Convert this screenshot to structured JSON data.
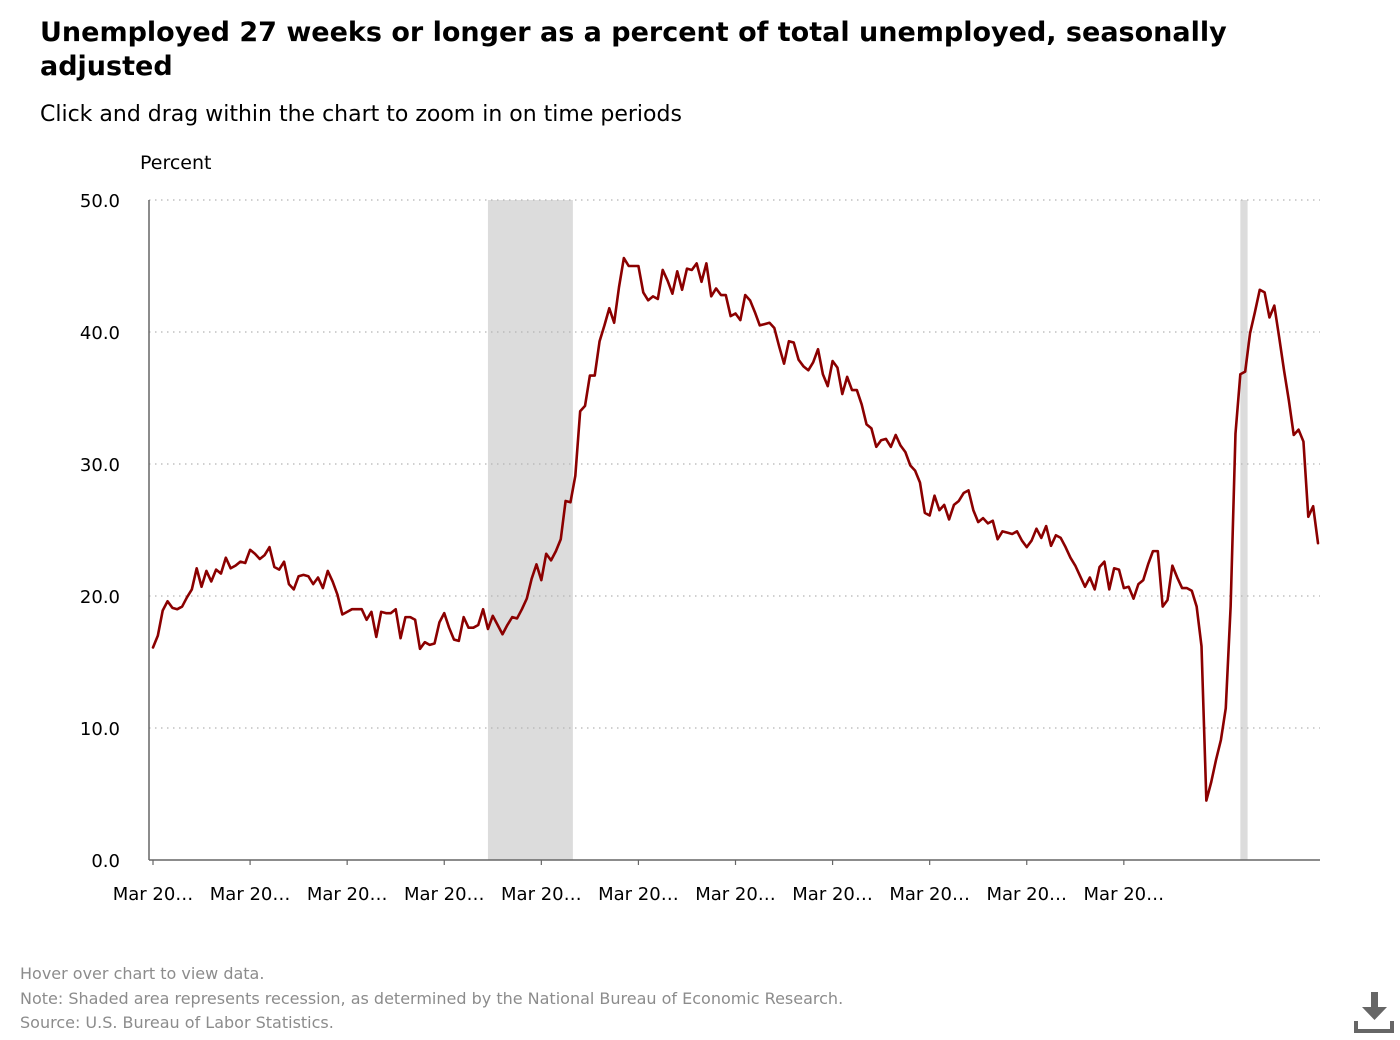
{
  "header": {
    "title": "Unemployed 27 weeks or longer as a percent of total unemployed, seasonally adjusted",
    "subtitle": "Click and drag within the chart to zoom in on time periods"
  },
  "footer": {
    "hover_hint": "Hover over chart to view data.",
    "note": "Note: Shaded area represents recession, as determined by the National Bureau of Economic Research.",
    "source": "Source: U.S. Bureau of Labor Statistics."
  },
  "icons": {
    "download": "download-icon"
  },
  "colors": {
    "series": "#8b0000",
    "recession": "#dcdcdc",
    "axis": "#666666",
    "grid": "#b4b4b4"
  },
  "chart_data": {
    "type": "line",
    "title": "Unemployed 27 weeks or longer as a percent of total unemployed, seasonally adjusted",
    "ylabel": "Percent",
    "ylim": [
      0,
      50
    ],
    "yticks": [
      "0.0",
      "10.0",
      "20.0",
      "30.0",
      "40.0",
      "50.0"
    ],
    "xticks": [
      "Mar 20…",
      "Mar 20…",
      "Mar 20…",
      "Mar 20…",
      "Mar 20…",
      "Mar 20…",
      "Mar 20…",
      "Mar 20…",
      "Mar 20…",
      "Mar 20…",
      "Mar 20…"
    ],
    "grid": "horizontal dotted",
    "recessions": [
      [
        69,
        86.5
      ],
      [
        224,
        225.5
      ]
    ],
    "series": [
      {
        "values": [
          16.1,
          17.0,
          18.9,
          19.6,
          19.1,
          19.0,
          19.2,
          19.9,
          20.5,
          22.1,
          20.7,
          21.9,
          21.1,
          22.0,
          21.7,
          22.9,
          22.1,
          22.3,
          22.6,
          22.5,
          23.5,
          23.2,
          22.8,
          23.1,
          23.7,
          22.2,
          22.0,
          22.6,
          20.9,
          20.5,
          21.5,
          21.6,
          21.5,
          20.9,
          21.4,
          20.6,
          21.9,
          21.1,
          20.1,
          18.6,
          18.8,
          19.0,
          19.0,
          19.0,
          18.2,
          18.8,
          16.9,
          18.8,
          18.7,
          18.7,
          19.0,
          16.8,
          18.4,
          18.4,
          18.2,
          16.0,
          16.5,
          16.3,
          16.4,
          18.0,
          18.7,
          17.6,
          16.7,
          16.6,
          18.4,
          17.6,
          17.6,
          17.8,
          19.0,
          17.5,
          18.5,
          17.8,
          17.1,
          17.8,
          18.4,
          18.3,
          19.0,
          19.8,
          21.3,
          22.4,
          21.2,
          23.2,
          22.7,
          23.4,
          24.3,
          27.2,
          27.1,
          29.1,
          34.0,
          34.4,
          36.7,
          36.7,
          39.3,
          40.5,
          41.8,
          40.7,
          43.4,
          45.6,
          45.0,
          45.0,
          45.0,
          43.0,
          42.4,
          42.7,
          42.5,
          44.7,
          43.9,
          42.9,
          44.6,
          43.2,
          44.8,
          44.7,
          45.2,
          43.8,
          45.2,
          42.7,
          43.3,
          42.8,
          42.8,
          41.2,
          41.4,
          40.9,
          42.8,
          42.4,
          41.5,
          40.5,
          40.6,
          40.7,
          40.3,
          38.9,
          37.6,
          39.3,
          39.2,
          37.9,
          37.4,
          37.1,
          37.7,
          38.7,
          36.8,
          35.9,
          37.8,
          37.3,
          35.3,
          36.6,
          35.6,
          35.6,
          34.5,
          33.0,
          32.7,
          31.3,
          31.8,
          31.9,
          31.3,
          32.2,
          31.4,
          30.9,
          29.9,
          29.5,
          28.6,
          26.3,
          26.1,
          27.6,
          26.5,
          26.9,
          25.8,
          26.9,
          27.2,
          27.8,
          28.0,
          26.5,
          25.6,
          25.9,
          25.5,
          25.7,
          24.3,
          24.9,
          24.8,
          24.7,
          24.9,
          24.2,
          23.7,
          24.2,
          25.1,
          24.4,
          25.3,
          23.8,
          24.6,
          24.4,
          23.7,
          22.9,
          22.3,
          21.5,
          20.7,
          21.4,
          20.5,
          22.2,
          22.6,
          20.5,
          22.1,
          22.0,
          20.6,
          20.7,
          19.8,
          20.9,
          21.2,
          22.4,
          23.4,
          23.4,
          19.2,
          19.7,
          22.3,
          21.4,
          20.6,
          20.6,
          20.4,
          19.2,
          16.2,
          4.5,
          5.9,
          7.6,
          9.1,
          11.5,
          19.2,
          32.3,
          36.8,
          37.0,
          39.9,
          41.5,
          43.2,
          43.0,
          41.1,
          42.0,
          39.6,
          37.1,
          34.8,
          32.2,
          32.6,
          31.7,
          26.0,
          26.8,
          24.0
        ]
      }
    ]
  }
}
